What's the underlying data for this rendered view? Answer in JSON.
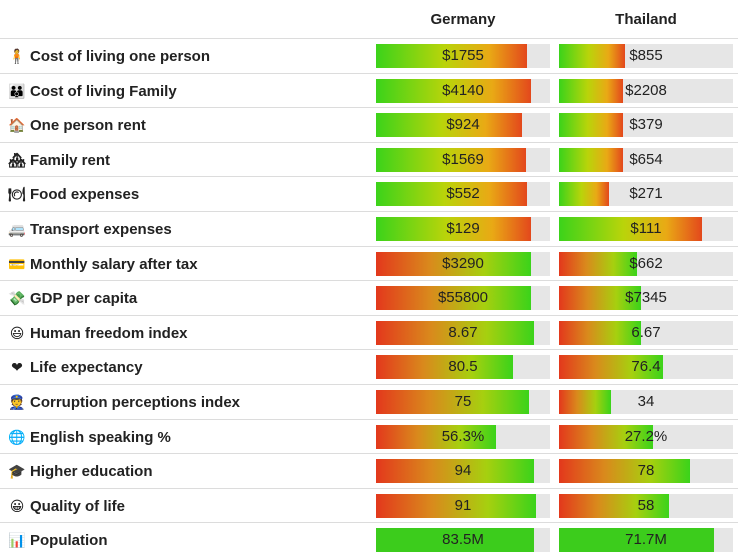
{
  "countries": {
    "a": "Germany",
    "b": "Thailand"
  },
  "rows": [
    {
      "icon": "person-icon",
      "glyph": "🧍",
      "label": "Cost of living one person",
      "a": {
        "text": "$1755",
        "fill": 0.87,
        "style": "up"
      },
      "b": {
        "text": "$855",
        "fill": 0.38,
        "style": "up"
      }
    },
    {
      "icon": "family-icon",
      "glyph": "👪",
      "label": "Cost of living Family",
      "a": {
        "text": "$4140",
        "fill": 0.89,
        "style": "up"
      },
      "b": {
        "text": "$2208",
        "fill": 0.37,
        "style": "up"
      }
    },
    {
      "icon": "house-icon",
      "glyph": "🏠",
      "label": "One person rent",
      "a": {
        "text": "$924",
        "fill": 0.84,
        "style": "up"
      },
      "b": {
        "text": "$379",
        "fill": 0.37,
        "style": "up"
      }
    },
    {
      "icon": "houses-icon",
      "glyph": "🏘",
      "label": "Family rent",
      "a": {
        "text": "$1569",
        "fill": 0.86,
        "style": "up"
      },
      "b": {
        "text": "$654",
        "fill": 0.37,
        "style": "up"
      }
    },
    {
      "icon": "plate-icon",
      "glyph": "🍽",
      "label": "Food expenses",
      "a": {
        "text": "$552",
        "fill": 0.87,
        "style": "up"
      },
      "b": {
        "text": "$271",
        "fill": 0.29,
        "style": "up"
      }
    },
    {
      "icon": "car-icon",
      "glyph": "🚐",
      "label": "Transport expenses",
      "a": {
        "text": "$129",
        "fill": 0.89,
        "style": "up"
      },
      "b": {
        "text": "$111",
        "fill": 0.82,
        "style": "up"
      }
    },
    {
      "icon": "card-icon",
      "glyph": "💳",
      "label": "Monthly salary after tax",
      "a": {
        "text": "$3290",
        "fill": 0.89,
        "style": "down"
      },
      "b": {
        "text": "$662",
        "fill": 0.45,
        "style": "down"
      }
    },
    {
      "icon": "money-icon",
      "glyph": "💸",
      "label": "GDP per capita",
      "a": {
        "text": "$55800",
        "fill": 0.89,
        "style": "down"
      },
      "b": {
        "text": "$7345",
        "fill": 0.47,
        "style": "down"
      }
    },
    {
      "icon": "smile-icon",
      "glyph": "😃",
      "label": "Human freedom index",
      "a": {
        "text": "8.67",
        "fill": 0.91,
        "style": "down"
      },
      "b": {
        "text": "6.67",
        "fill": 0.47,
        "style": "down"
      }
    },
    {
      "icon": "heart-icon",
      "glyph": "❤",
      "label": "Life expectancy",
      "a": {
        "text": "80.5",
        "fill": 0.79,
        "style": "down"
      },
      "b": {
        "text": "76.4",
        "fill": 0.6,
        "style": "down"
      }
    },
    {
      "icon": "officer-icon",
      "glyph": "👮",
      "label": "Corruption perceptions index",
      "a": {
        "text": "75",
        "fill": 0.88,
        "style": "down"
      },
      "b": {
        "text": "34",
        "fill": 0.3,
        "style": "down"
      }
    },
    {
      "icon": "globe-icon",
      "glyph": "🌐",
      "label": "English speaking %",
      "a": {
        "text": "56.3%",
        "fill": 0.69,
        "style": "down"
      },
      "b": {
        "text": "27.2%",
        "fill": 0.54,
        "style": "down"
      }
    },
    {
      "icon": "graduation-cap-icon",
      "glyph": "🎓",
      "label": "Higher education",
      "a": {
        "text": "94",
        "fill": 0.91,
        "style": "down"
      },
      "b": {
        "text": "78",
        "fill": 0.75,
        "style": "down"
      }
    },
    {
      "icon": "smiley-icon",
      "glyph": "😀",
      "label": "Quality of life",
      "a": {
        "text": "91",
        "fill": 0.92,
        "style": "down"
      },
      "b": {
        "text": "58",
        "fill": 0.63,
        "style": "down"
      }
    },
    {
      "icon": "chart-icon",
      "glyph": "📊",
      "label": "Population",
      "a": {
        "text": "83.5M",
        "fill": 0.91,
        "style": "solid"
      },
      "b": {
        "text": "71.7M",
        "fill": 0.89,
        "style": "solid"
      }
    }
  ]
}
